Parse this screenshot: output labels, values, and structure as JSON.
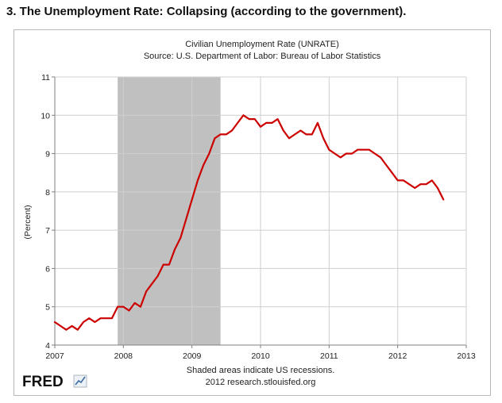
{
  "heading": "3. The Unemployment Rate: Collapsing (according to the government).",
  "colors": {
    "line": "#cc0000",
    "recession": "#c0c0c0",
    "grid": "#cfcfcf",
    "axis": "#808080"
  },
  "footer": {
    "note": "Shaded areas indicate US recessions.",
    "credit": "2012 research.stlouisfed.org",
    "logo_text": "FRED"
  },
  "chart_data": {
    "type": "line",
    "title": "Civilian Unemployment Rate (UNRATE)",
    "subtitle": "Source: U.S. Department of Labor: Bureau of Labor Statistics",
    "xlabel": "",
    "ylabel": "(Percent)",
    "xlim": [
      2007.0,
      2013.0
    ],
    "ylim": [
      4,
      11
    ],
    "yticks": [
      4,
      5,
      6,
      7,
      8,
      9,
      10,
      11
    ],
    "xticks": [
      "2007",
      "2008",
      "2009",
      "2010",
      "2011",
      "2012",
      "2013"
    ],
    "grid": true,
    "recessions": [
      {
        "start": "2007-12",
        "end": "2009-06"
      }
    ],
    "series": [
      {
        "x": [
          "2007-01",
          "2007-02",
          "2007-03",
          "2007-04",
          "2007-05",
          "2007-06",
          "2007-07",
          "2007-08",
          "2007-09",
          "2007-10",
          "2007-11",
          "2007-12",
          "2008-01",
          "2008-02",
          "2008-03",
          "2008-04",
          "2008-05",
          "2008-06",
          "2008-07",
          "2008-08",
          "2008-09",
          "2008-10",
          "2008-11",
          "2008-12",
          "2009-01",
          "2009-02",
          "2009-03",
          "2009-04",
          "2009-05",
          "2009-06",
          "2009-07",
          "2009-08",
          "2009-09",
          "2009-10",
          "2009-11",
          "2009-12",
          "2010-01",
          "2010-02",
          "2010-03",
          "2010-04",
          "2010-05",
          "2010-06",
          "2010-07",
          "2010-08",
          "2010-09",
          "2010-10",
          "2010-11",
          "2010-12",
          "2011-01",
          "2011-02",
          "2011-03",
          "2011-04",
          "2011-05",
          "2011-06",
          "2011-07",
          "2011-08",
          "2011-09",
          "2011-10",
          "2011-11",
          "2011-12",
          "2012-01",
          "2012-02",
          "2012-03",
          "2012-04",
          "2012-05",
          "2012-06",
          "2012-07",
          "2012-08",
          "2012-09"
        ],
        "values": [
          4.6,
          4.5,
          4.4,
          4.5,
          4.4,
          4.6,
          4.7,
          4.6,
          4.7,
          4.7,
          4.7,
          5.0,
          5.0,
          4.9,
          5.1,
          5.0,
          5.4,
          5.6,
          5.8,
          6.1,
          6.1,
          6.5,
          6.8,
          7.3,
          7.8,
          8.3,
          8.7,
          9.0,
          9.4,
          9.5,
          9.5,
          9.6,
          9.8,
          10.0,
          9.9,
          9.9,
          9.7,
          9.8,
          9.8,
          9.9,
          9.6,
          9.4,
          9.5,
          9.6,
          9.5,
          9.5,
          9.8,
          9.4,
          9.1,
          9.0,
          8.9,
          9.0,
          9.0,
          9.1,
          9.1,
          9.1,
          9.0,
          8.9,
          8.7,
          8.5,
          8.3,
          8.3,
          8.2,
          8.1,
          8.2,
          8.2,
          8.3,
          8.1,
          7.8
        ]
      }
    ]
  }
}
